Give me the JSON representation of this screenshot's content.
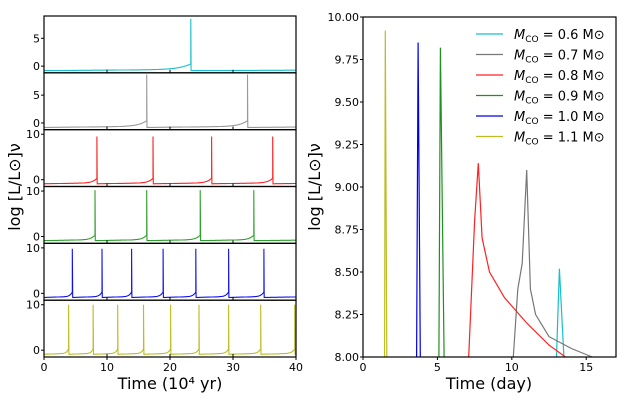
{
  "chart_data": [
    {
      "type": "line",
      "title": "",
      "xlabel": "Time (10⁴ yr)",
      "ylabel": "log [L/L⊙]ν",
      "xlim": [
        0,
        40
      ],
      "xticks": [
        "0",
        "10",
        "20",
        "30",
        "40"
      ],
      "panels": [
        {
          "name": "M_CO = 0.6 M⊙",
          "color": "#17becf",
          "ylim": [
            -1.2,
            9
          ],
          "yticks": [
            "0",
            "5"
          ],
          "ytick_values": [
            0,
            5
          ],
          "spike_times": [
            23.3
          ],
          "peak": 8.5,
          "baseline": -0.8
        },
        {
          "name": "M_CO = 0.7 M⊙",
          "color": "#999999",
          "ylim": [
            -1.2,
            9
          ],
          "yticks": [
            "0",
            "5"
          ],
          "ytick_values": [
            0,
            5
          ],
          "spike_times": [
            16.3,
            32.3
          ],
          "peak": 8.7,
          "baseline": -0.8
        },
        {
          "name": "M_CO = 0.8 M⊙",
          "color": "#ff2020",
          "ylim": [
            -1.5,
            11
          ],
          "yticks": [
            "0",
            "10"
          ],
          "ytick_values": [
            0,
            10
          ],
          "spike_times": [
            8.4,
            17.3,
            26.6,
            36.3
          ],
          "peak": 9.5,
          "baseline": -0.9
        },
        {
          "name": "M_CO = 0.9 M⊙",
          "color": "#2ca02c",
          "ylim": [
            -1.5,
            11
          ],
          "yticks": [
            "0",
            "10"
          ],
          "ytick_values": [
            0,
            10
          ],
          "spike_times": [
            8.1,
            16.3,
            24.8,
            33.3
          ],
          "peak": 10.2,
          "baseline": -0.9
        },
        {
          "name": "M_CO = 1.0 M⊙",
          "color": "#1010ee",
          "ylim": [
            -1.5,
            11
          ],
          "yticks": [
            "0",
            "10"
          ],
          "ytick_values": [
            0,
            10
          ],
          "spike_times": [
            4.5,
            9.2,
            13.9,
            18.9,
            24.1,
            29.3,
            34.9
          ],
          "peak": 9.8,
          "baseline": -0.9
        },
        {
          "name": "M_CO = 1.1 M⊙",
          "color": "#bcbd22",
          "ylim": [
            -1.5,
            11
          ],
          "yticks": [
            "0",
            "10"
          ],
          "ytick_values": [
            0,
            10
          ],
          "spike_times": [
            3.9,
            7.8,
            11.7,
            15.8,
            20.1,
            24.6,
            29.3,
            34.4,
            39.8
          ],
          "peak": 10,
          "baseline": -0.9
        }
      ]
    },
    {
      "type": "line",
      "title": "",
      "xlabel": "Time (day)",
      "ylabel": "log [L/L⊙]ν",
      "xlim": [
        0,
        17
      ],
      "ylim": [
        8,
        10
      ],
      "xticks": [
        "0",
        "5",
        "10",
        "15"
      ],
      "xtick_values": [
        0,
        5,
        10,
        15
      ],
      "yticks": [
        "8.00",
        "8.25",
        "8.50",
        "8.75",
        "9.00",
        "9.25",
        "9.50",
        "9.75",
        "10.00"
      ],
      "ytick_values": [
        8,
        8.25,
        8.5,
        8.75,
        9,
        9.25,
        9.5,
        9.75,
        10
      ],
      "legend_position": "top-right",
      "series": [
        {
          "name": "M_CO = 0.6 M⊙",
          "mass": "0.6",
          "color": "#17becf",
          "points": [
            [
              13.0,
              8
            ],
            [
              13.2,
              8.52
            ],
            [
              13.5,
              8
            ]
          ]
        },
        {
          "name": "M_CO = 0.7 M⊙",
          "mass": "0.7",
          "color": "#777777",
          "points": [
            [
              10.1,
              8
            ],
            [
              10.4,
              8.4
            ],
            [
              10.7,
              8.55
            ],
            [
              11.0,
              9.1
            ],
            [
              11.25,
              8.4
            ],
            [
              11.6,
              8.25
            ],
            [
              12.5,
              8.12
            ],
            [
              14,
              8.05
            ],
            [
              15.4,
              8.0
            ]
          ]
        },
        {
          "name": "M_CO = 0.8 M⊙",
          "mass": "0.8",
          "color": "#ff2020",
          "points": [
            [
              7.1,
              8
            ],
            [
              7.5,
              8.8
            ],
            [
              7.75,
              9.14
            ],
            [
              8.0,
              8.7
            ],
            [
              8.5,
              8.5
            ],
            [
              9.5,
              8.35
            ],
            [
              11,
              8.2
            ],
            [
              12.5,
              8.07
            ],
            [
              13.6,
              8.0
            ]
          ]
        },
        {
          "name": "M_CO = 0.9 M⊙",
          "mass": "0.9",
          "color": "#1f8f1f",
          "points": [
            [
              5.1,
              8
            ],
            [
              5.2,
              9.82
            ],
            [
              5.45,
              8
            ]
          ]
        },
        {
          "name": "M_CO = 1.0 M⊙",
          "mass": "1.0",
          "color": "#0000ee",
          "points": [
            [
              3.6,
              8
            ],
            [
              3.7,
              9.85
            ],
            [
              3.85,
              8
            ]
          ]
        },
        {
          "name": "M_CO = 1.1 M⊙",
          "mass": "1.1",
          "color": "#bcbd22",
          "points": [
            [
              1.45,
              8
            ],
            [
              1.5,
              9.92
            ],
            [
              1.6,
              8
            ]
          ]
        }
      ]
    }
  ]
}
